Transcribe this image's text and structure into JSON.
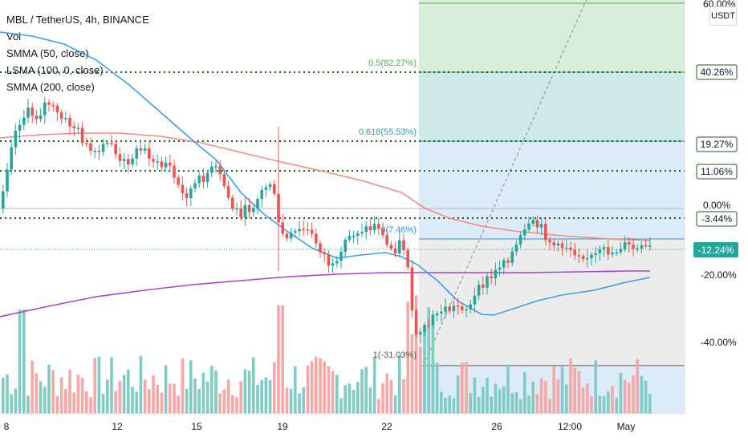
{
  "header": {
    "title": "MBL / TetherUS, 4h, BINANCE",
    "indicators": [
      "Vol",
      "SMMA (50, close)",
      "LSMA (100, 0, close)",
      "SMMA (200, close)"
    ]
  },
  "currency": "USDT",
  "colors": {
    "up": "#26a69a",
    "down": "#ef5350",
    "vol_up": "#80cbc4",
    "vol_down": "#f7a8a6",
    "smma50": "#3ba0e6",
    "lsma100": "#f28b82",
    "smma200": "#a844c8",
    "level_green": "#1b5e20",
    "last_price": "#26a69a"
  },
  "chart_data": {
    "type": "candlestick",
    "x_ticks": [
      "8",
      "12",
      "15",
      "19",
      "22",
      "26",
      "12:00",
      "May"
    ],
    "y_axis_labels": [
      "60.00%",
      "0.00%",
      "-20.00%",
      "-40.00%"
    ],
    "level_lines": [
      "40.26%",
      "19.27%",
      "11.06%",
      "-3.44%"
    ],
    "last_price_label": "-12.24%",
    "fib_labels": [
      "0.5(82.27%)",
      "0.618(55.53%)",
      "0(7.46%)",
      "1(-31.03%)"
    ],
    "series": [
      {
        "name": "SMMA (50, close)"
      },
      {
        "name": "LSMA (100, 0, close)"
      },
      {
        "name": "SMMA (200, close)"
      }
    ],
    "volume": {
      "name": "Vol"
    }
  }
}
